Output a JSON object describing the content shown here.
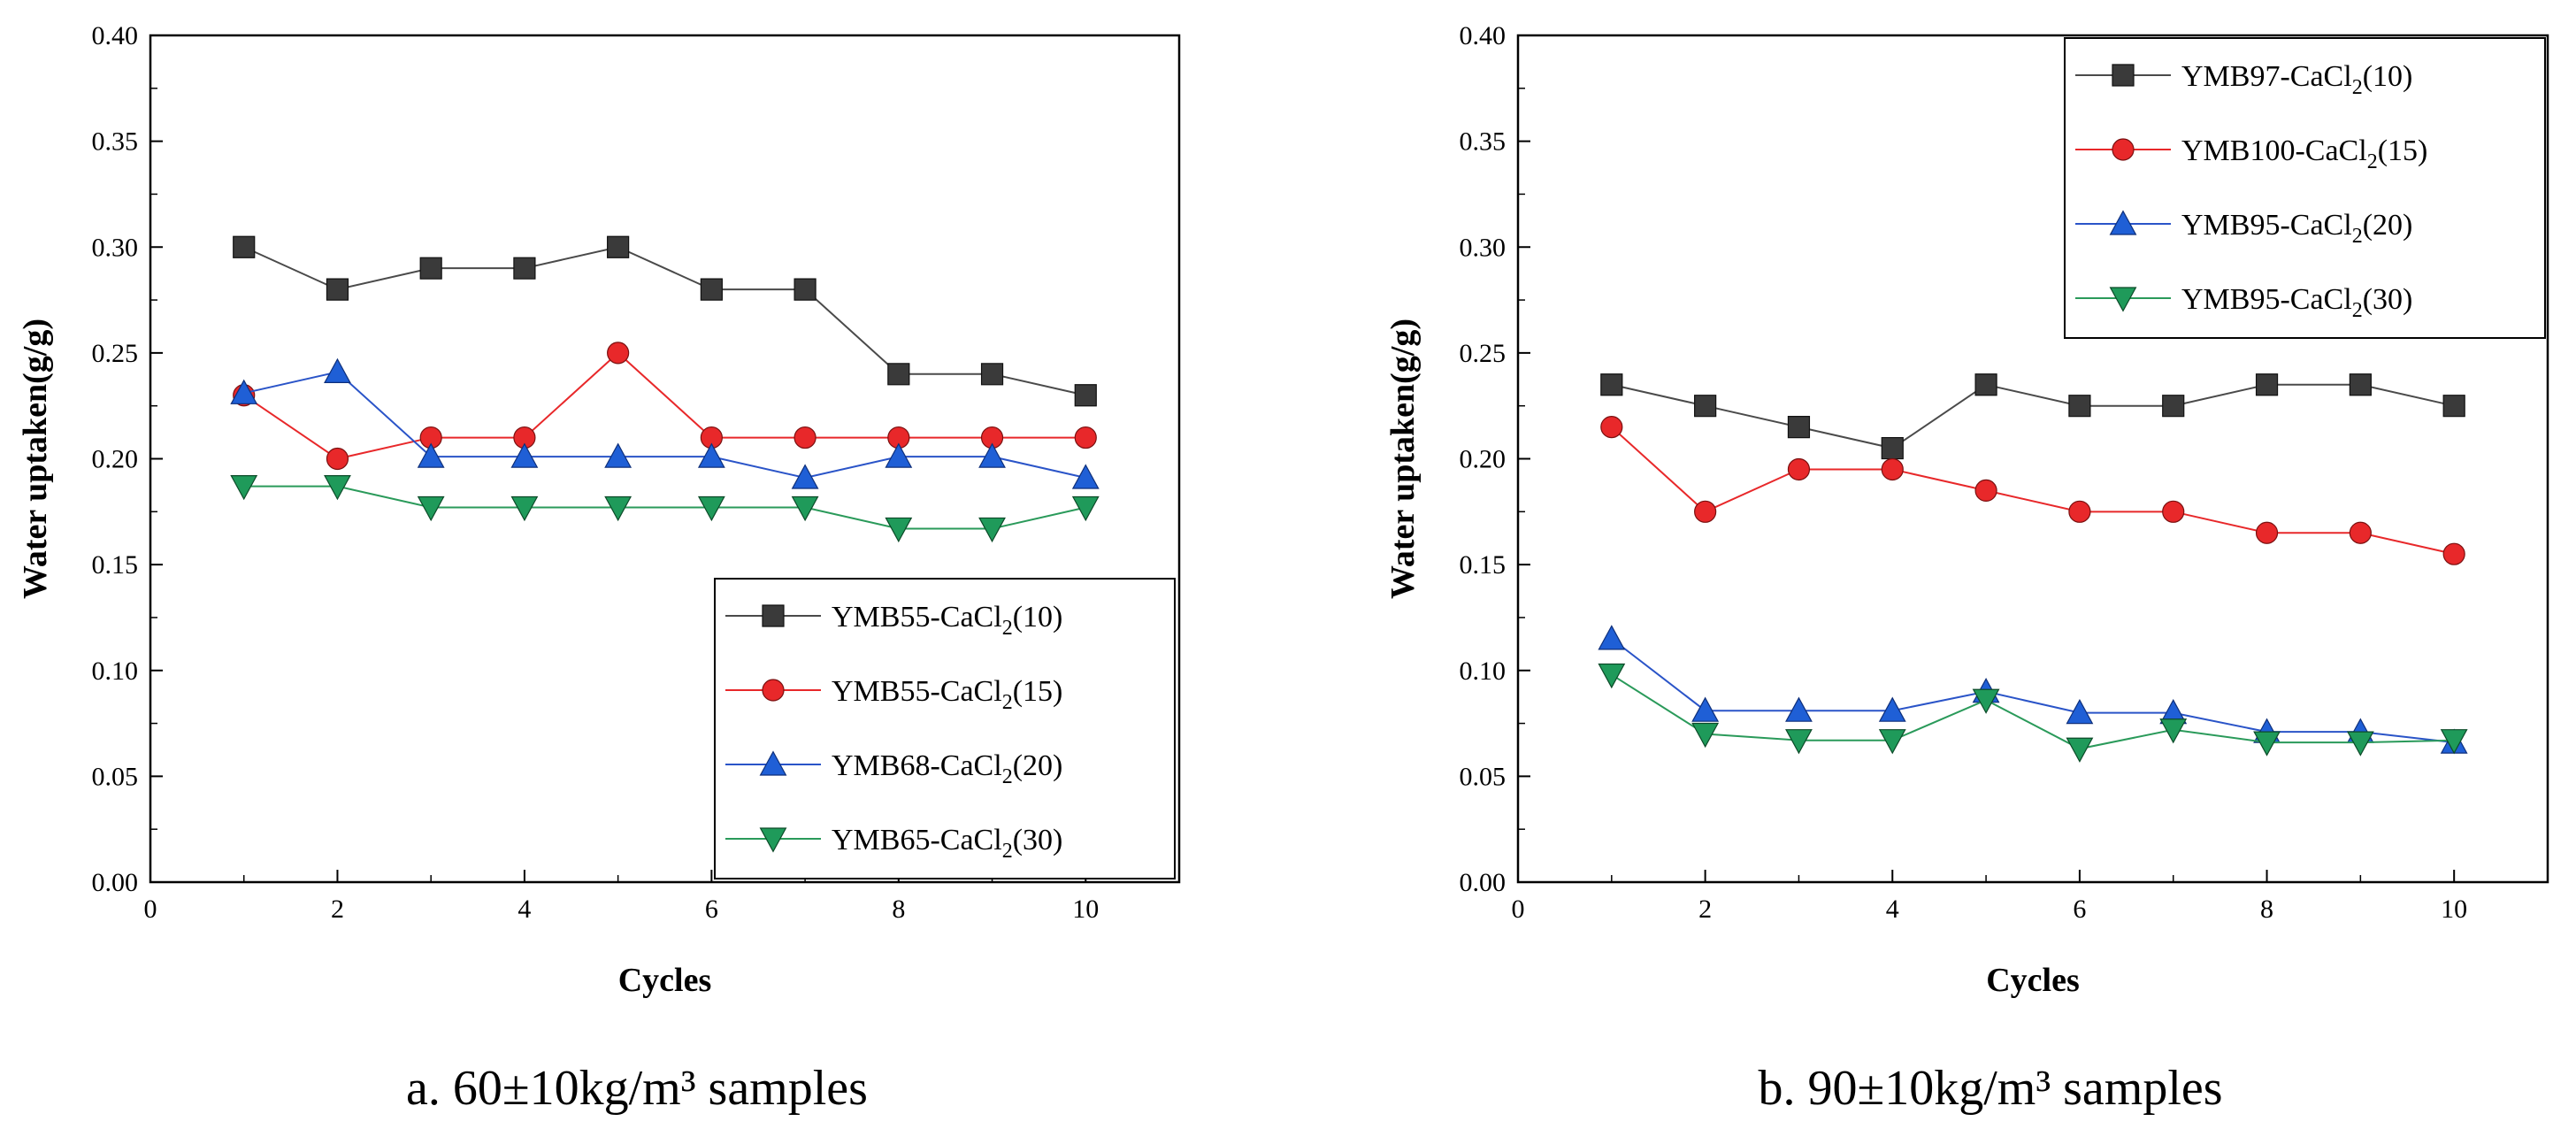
{
  "chart_data": [
    {
      "type": "line",
      "caption": "a. 60±10kg/m³ samples",
      "xlabel": "Cycles",
      "ylabel": "Water uptaken(g/g)",
      "xlim": [
        0,
        11
      ],
      "ylim": [
        0,
        0.4
      ],
      "xticks": [
        "0",
        "2",
        "4",
        "6",
        "8",
        "10"
      ],
      "yticks": [
        "0.00",
        "0.05",
        "0.10",
        "0.15",
        "0.20",
        "0.25",
        "0.30",
        "0.35",
        "0.40"
      ],
      "legend_position": "bottom-right",
      "grid": false,
      "x": [
        1,
        2,
        3,
        4,
        5,
        6,
        7,
        8,
        9,
        10
      ],
      "series": [
        {
          "name": "YMB55-CaCl2(10)",
          "legend_main": "YMB55-CaCl",
          "legend_sub": "2",
          "legend_tail": "(10)",
          "marker": "square",
          "color": "#3a3a3a",
          "line_color": "#4a4a4a",
          "values": [
            0.3,
            0.28,
            0.29,
            0.29,
            0.3,
            0.28,
            0.28,
            0.24,
            0.24,
            0.23
          ]
        },
        {
          "name": "YMB55-CaCl2(15)",
          "legend_main": "YMB55-CaCl",
          "legend_sub": "2",
          "legend_tail": "(15)",
          "marker": "circle",
          "color": "#e8282a",
          "line_color": "#e8282a",
          "values": [
            0.23,
            0.2,
            0.21,
            0.21,
            0.25,
            0.21,
            0.21,
            0.21,
            0.21,
            0.21
          ]
        },
        {
          "name": "YMB68-CaCl2(20)",
          "legend_main": "YMB68-CaCl",
          "legend_sub": "2",
          "legend_tail": "(20)",
          "marker": "triangle-up",
          "color": "#1f5fd6",
          "line_color": "#2a54c8",
          "values": [
            0.231,
            0.241,
            0.201,
            0.201,
            0.201,
            0.201,
            0.191,
            0.201,
            0.201,
            0.191
          ]
        },
        {
          "name": "YMB65-CaCl2(30)",
          "legend_main": "YMB65-CaCl",
          "legend_sub": "2",
          "legend_tail": "(30)",
          "marker": "triangle-down",
          "color": "#1f9a5a",
          "line_color": "#2a9a5a",
          "values": [
            0.187,
            0.187,
            0.177,
            0.177,
            0.177,
            0.177,
            0.177,
            0.167,
            0.167,
            0.177
          ]
        }
      ]
    },
    {
      "type": "line",
      "caption": "b. 90±10kg/m³ samples",
      "xlabel": "Cycles",
      "ylabel": "Water uptaken(g/g)",
      "xlim": [
        0,
        11
      ],
      "ylim": [
        0,
        0.4
      ],
      "xticks": [
        "0",
        "2",
        "4",
        "6",
        "8",
        "10"
      ],
      "yticks": [
        "0.00",
        "0.05",
        "0.10",
        "0.15",
        "0.20",
        "0.25",
        "0.30",
        "0.35",
        "0.40"
      ],
      "legend_position": "top-right",
      "grid": false,
      "x": [
        1,
        2,
        3,
        4,
        5,
        6,
        7,
        8,
        9,
        10
      ],
      "series": [
        {
          "name": "YMB97-CaCl2(10)",
          "legend_main": "YMB97-CaCl",
          "legend_sub": "2",
          "legend_tail": "(10)",
          "marker": "square",
          "color": "#3a3a3a",
          "line_color": "#4a4a4a",
          "values": [
            0.235,
            0.225,
            0.215,
            0.205,
            0.235,
            0.225,
            0.225,
            0.235,
            0.235,
            0.225
          ]
        },
        {
          "name": "YMB100-CaCl2(15)",
          "legend_main": "YMB100-CaCl",
          "legend_sub": "2",
          "legend_tail": "(15)",
          "marker": "circle",
          "color": "#e8282a",
          "line_color": "#e8282a",
          "values": [
            0.215,
            0.175,
            0.195,
            0.195,
            0.185,
            0.175,
            0.175,
            0.165,
            0.165,
            0.155
          ]
        },
        {
          "name": "YMB95-CaCl2(20)",
          "legend_main": "YMB95-CaCl",
          "legend_sub": "2",
          "legend_tail": "(20)",
          "marker": "triangle-up",
          "color": "#1f5fd6",
          "line_color": "#2a54c8",
          "values": [
            0.115,
            0.081,
            0.081,
            0.081,
            0.09,
            0.08,
            0.08,
            0.071,
            0.071,
            0.066
          ]
        },
        {
          "name": "YMB95-CaCl2(30)",
          "legend_main": "YMB95-CaCl",
          "legend_sub": "2",
          "legend_tail": "(30)",
          "marker": "triangle-down",
          "color": "#1f9a5a",
          "line_color": "#2a9a5a",
          "values": [
            0.098,
            0.07,
            0.067,
            0.067,
            0.086,
            0.063,
            0.072,
            0.066,
            0.066,
            0.067
          ]
        }
      ]
    }
  ]
}
